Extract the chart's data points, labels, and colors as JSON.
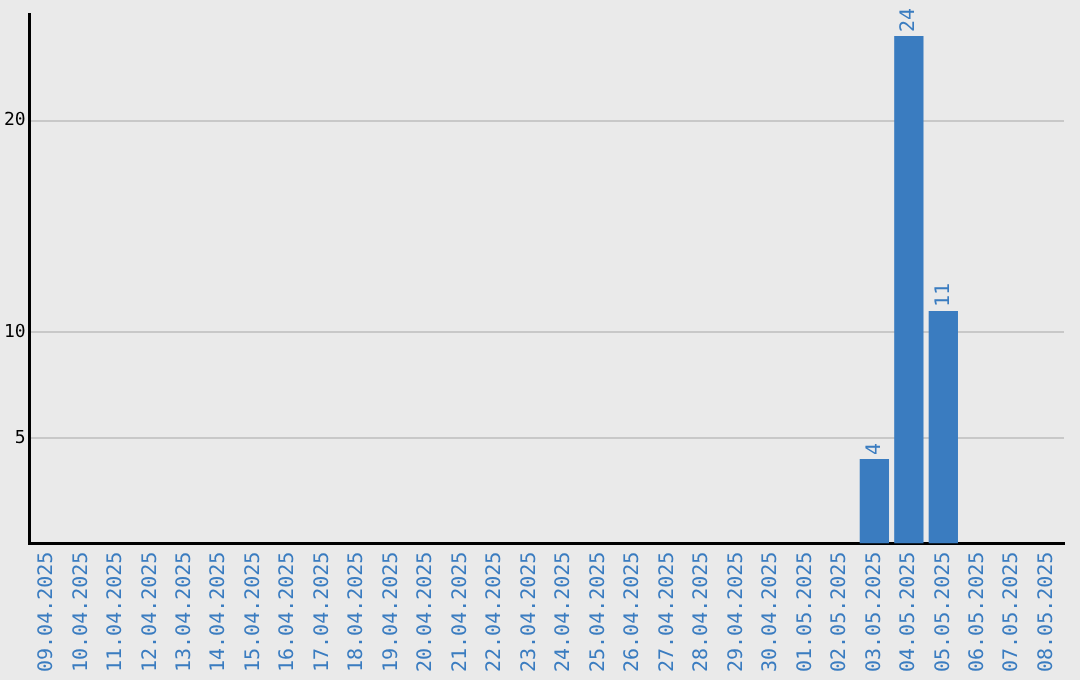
{
  "chart_data": {
    "type": "bar",
    "categories": [
      "09.04.2025",
      "10.04.2025",
      "11.04.2025",
      "12.04.2025",
      "13.04.2025",
      "14.04.2025",
      "15.04.2025",
      "16.04.2025",
      "17.04.2025",
      "18.04.2025",
      "19.04.2025",
      "20.04.2025",
      "21.04.2025",
      "22.04.2025",
      "23.04.2025",
      "24.04.2025",
      "25.04.2025",
      "26.04.2025",
      "27.04.2025",
      "28.04.2025",
      "29.04.2025",
      "30.04.2025",
      "01.05.2025",
      "02.05.2025",
      "03.05.2025",
      "04.05.2025",
      "05.05.2025",
      "06.05.2025",
      "07.05.2025",
      "08.05.2025"
    ],
    "values": [
      0,
      0,
      0,
      0,
      0,
      0,
      0,
      0,
      0,
      0,
      0,
      0,
      0,
      0,
      0,
      0,
      0,
      0,
      0,
      0,
      0,
      0,
      0,
      0,
      4,
      24,
      11,
      0,
      0,
      0
    ],
    "value_labels": [
      null,
      null,
      null,
      null,
      null,
      null,
      null,
      null,
      null,
      null,
      null,
      null,
      null,
      null,
      null,
      null,
      null,
      null,
      null,
      null,
      null,
      null,
      null,
      null,
      "4",
      "24",
      "11",
      null,
      null,
      null
    ],
    "color": "#3a7cc0",
    "ylim": [
      0,
      25
    ],
    "yticks": [
      5,
      10,
      20
    ],
    "grid": "y",
    "legend": false
  }
}
